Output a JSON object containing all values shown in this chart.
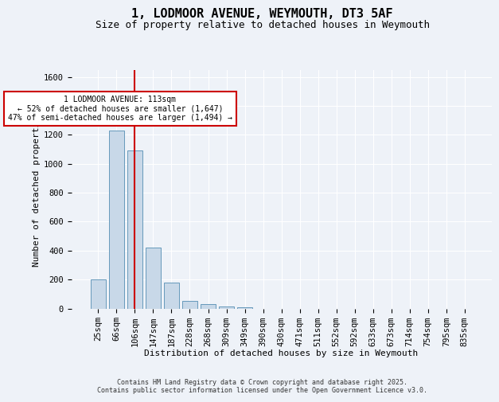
{
  "title_line1": "1, LODMOOR AVENUE, WEYMOUTH, DT3 5AF",
  "title_line2": "Size of property relative to detached houses in Weymouth",
  "xlabel": "Distribution of detached houses by size in Weymouth",
  "ylabel": "Number of detached properties",
  "categories": [
    "25sqm",
    "66sqm",
    "106sqm",
    "147sqm",
    "187sqm",
    "228sqm",
    "268sqm",
    "309sqm",
    "349sqm",
    "390sqm",
    "430sqm",
    "471sqm",
    "511sqm",
    "552sqm",
    "592sqm",
    "633sqm",
    "673sqm",
    "714sqm",
    "754sqm",
    "795sqm",
    "835sqm"
  ],
  "values": [
    200,
    1230,
    1090,
    420,
    180,
    50,
    30,
    15,
    8,
    0,
    0,
    0,
    0,
    0,
    0,
    0,
    0,
    0,
    0,
    0,
    0
  ],
  "bar_color": "#c8d8e8",
  "bar_edge_color": "#6699bb",
  "red_line_index": 2,
  "red_line_color": "#cc0000",
  "annotation_text": "1 LODMOOR AVENUE: 113sqm\n← 52% of detached houses are smaller (1,647)\n47% of semi-detached houses are larger (1,494) →",
  "annotation_box_color": "#ffffff",
  "annotation_box_edge_color": "#cc0000",
  "ylim": [
    0,
    1650
  ],
  "yticks": [
    0,
    200,
    400,
    600,
    800,
    1000,
    1200,
    1400,
    1600
  ],
  "background_color": "#eef2f8",
  "grid_color": "#ffffff",
  "footer_text": "Contains HM Land Registry data © Crown copyright and database right 2025.\nContains public sector information licensed under the Open Government Licence v3.0.",
  "title_fontsize": 11,
  "subtitle_fontsize": 9,
  "axis_label_fontsize": 8,
  "tick_fontsize": 7.5,
  "annotation_fontsize": 7,
  "footer_fontsize": 6
}
